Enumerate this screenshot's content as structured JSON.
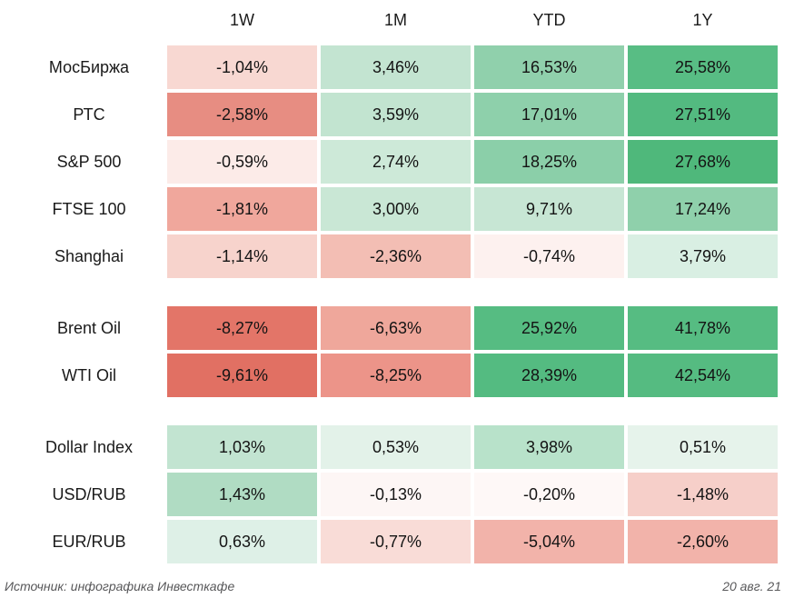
{
  "chart_data": {
    "type": "heatmap",
    "columns": [
      "1W",
      "1M",
      "YTD",
      "1Y"
    ],
    "unit": "%",
    "decimal_separator": ",",
    "palette": {
      "positive_max": "#4fb87b",
      "neutral": "#ffffff",
      "negative_max": "#e17063"
    },
    "sections": [
      {
        "rows": [
          {
            "label": "МосБиржа",
            "cells": [
              {
                "display": "-1,04%",
                "value": -1.04,
                "color": "#f8d8d2"
              },
              {
                "display": "3,46%",
                "value": 3.46,
                "color": "#c3e4d1"
              },
              {
                "display": "16,53%",
                "value": 16.53,
                "color": "#90d0ac"
              },
              {
                "display": "25,58%",
                "value": 25.58,
                "color": "#58bd84"
              }
            ]
          },
          {
            "label": "РТС",
            "cells": [
              {
                "display": "-2,58%",
                "value": -2.58,
                "color": "#e78d82"
              },
              {
                "display": "3,59%",
                "value": 3.59,
                "color": "#c2e4d0"
              },
              {
                "display": "17,01%",
                "value": 17.01,
                "color": "#8ed0ab"
              },
              {
                "display": "27,51%",
                "value": 27.51,
                "color": "#53ba80"
              }
            ]
          },
          {
            "label": "S&P 500",
            "cells": [
              {
                "display": "-0,59%",
                "value": -0.59,
                "color": "#fcebe8"
              },
              {
                "display": "2,74%",
                "value": 2.74,
                "color": "#cde9d8"
              },
              {
                "display": "18,25%",
                "value": 18.25,
                "color": "#8bcfa9"
              },
              {
                "display": "27,68%",
                "value": 27.68,
                "color": "#4fb87b"
              }
            ]
          },
          {
            "label": "FTSE 100",
            "cells": [
              {
                "display": "-1,81%",
                "value": -1.81,
                "color": "#f0a79c"
              },
              {
                "display": "3,00%",
                "value": 3.0,
                "color": "#c9e7d5"
              },
              {
                "display": "9,71%",
                "value": 9.71,
                "color": "#c7e6d4"
              },
              {
                "display": "17,24%",
                "value": 17.24,
                "color": "#8fd0ab"
              }
            ]
          },
          {
            "label": "Shanghai",
            "cells": [
              {
                "display": "-1,14%",
                "value": -1.14,
                "color": "#f7d3cc"
              },
              {
                "display": "-2,36%",
                "value": -2.36,
                "color": "#f3beb4"
              },
              {
                "display": "-0,74%",
                "value": -0.74,
                "color": "#fdf1ef"
              },
              {
                "display": "3,79%",
                "value": 3.79,
                "color": "#d9efe3"
              }
            ]
          }
        ]
      },
      {
        "rows": [
          {
            "label": "Brent Oil",
            "cells": [
              {
                "display": "-8,27%",
                "value": -8.27,
                "color": "#e37568"
              },
              {
                "display": "-6,63%",
                "value": -6.63,
                "color": "#efa79b"
              },
              {
                "display": "25,92%",
                "value": 25.92,
                "color": "#56bc82"
              },
              {
                "display": "41,78%",
                "value": 41.78,
                "color": "#56bc82"
              }
            ]
          },
          {
            "label": "WTI Oil",
            "cells": [
              {
                "display": "-9,61%",
                "value": -9.61,
                "color": "#e17063"
              },
              {
                "display": "-8,25%",
                "value": -8.25,
                "color": "#ec9489"
              },
              {
                "display": "28,39%",
                "value": 28.39,
                "color": "#54bb81"
              },
              {
                "display": "42,54%",
                "value": 42.54,
                "color": "#55bb81"
              }
            ]
          }
        ]
      },
      {
        "rows": [
          {
            "label": "Dollar Index",
            "cells": [
              {
                "display": "1,03%",
                "value": 1.03,
                "color": "#c2e4d1"
              },
              {
                "display": "0,53%",
                "value": 0.53,
                "color": "#e3f2e9"
              },
              {
                "display": "3,98%",
                "value": 3.98,
                "color": "#b8e2ca"
              },
              {
                "display": "0,51%",
                "value": 0.51,
                "color": "#e6f3eb"
              }
            ]
          },
          {
            "label": "USD/RUB",
            "cells": [
              {
                "display": "1,43%",
                "value": 1.43,
                "color": "#b0dcc3"
              },
              {
                "display": "-0,13%",
                "value": -0.13,
                "color": "#fdf6f5"
              },
              {
                "display": "-0,20%",
                "value": -0.2,
                "color": "#fef8f7"
              },
              {
                "display": "-1,48%",
                "value": -1.48,
                "color": "#f6cfc9"
              }
            ]
          },
          {
            "label": "EUR/RUB",
            "cells": [
              {
                "display": "0,63%",
                "value": 0.63,
                "color": "#def0e7"
              },
              {
                "display": "-0,77%",
                "value": -0.77,
                "color": "#f9dcd7"
              },
              {
                "display": "-5,04%",
                "value": -5.04,
                "color": "#f2b3aa"
              },
              {
                "display": "-2,60%",
                "value": -2.6,
                "color": "#f2b3aa"
              }
            ]
          }
        ]
      }
    ]
  },
  "footer": {
    "source": "Источник: инфографика Инвесткафе",
    "date": "20 авг. 21"
  }
}
